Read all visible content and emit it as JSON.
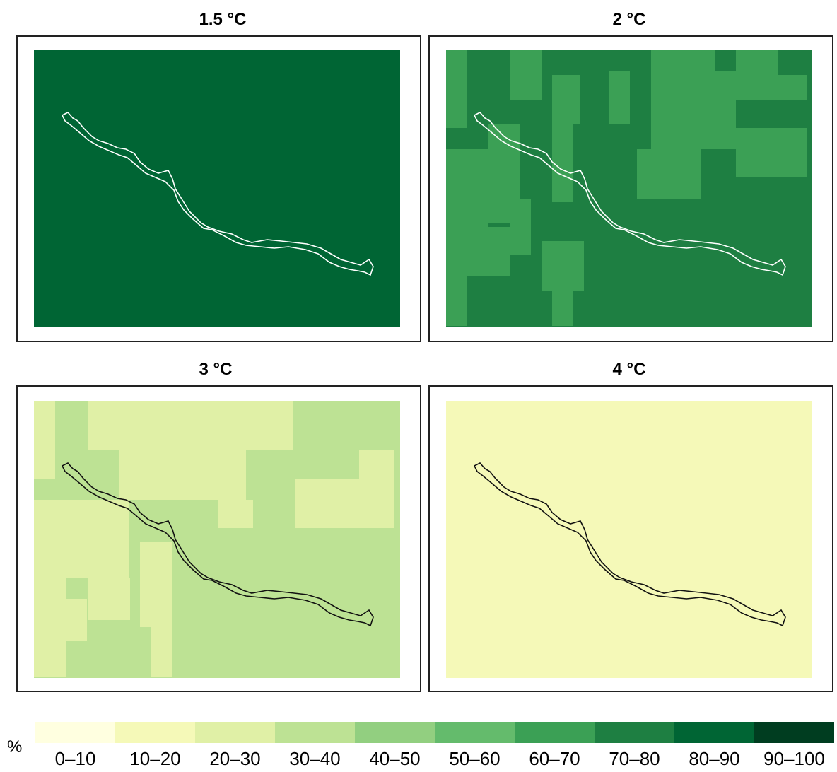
{
  "panels": [
    {
      "title": "1.5 °C",
      "class_index": 8
    },
    {
      "title": "2 °C",
      "class_index": 7
    },
    {
      "title": "3 °C",
      "class_index": 3
    },
    {
      "title": "4 °C",
      "class_index": 1
    }
  ],
  "legend": {
    "unit": "%",
    "classes": [
      {
        "label": "0–10",
        "color": "#ffffe0"
      },
      {
        "label": "10–20",
        "color": "#f5f9b8"
      },
      {
        "label": "20–30",
        "color": "#e0f0a6"
      },
      {
        "label": "30–40",
        "color": "#bde294"
      },
      {
        "label": "40–50",
        "color": "#92cf80"
      },
      {
        "label": "50–60",
        "color": "#64bb6c"
      },
      {
        "label": "60–70",
        "color": "#3ba055"
      },
      {
        "label": "70–80",
        "color": "#1e7f42"
      },
      {
        "label": "80–90",
        "color": "#006534"
      },
      {
        "label": "90–100",
        "color": "#003d20"
      }
    ]
  }
}
